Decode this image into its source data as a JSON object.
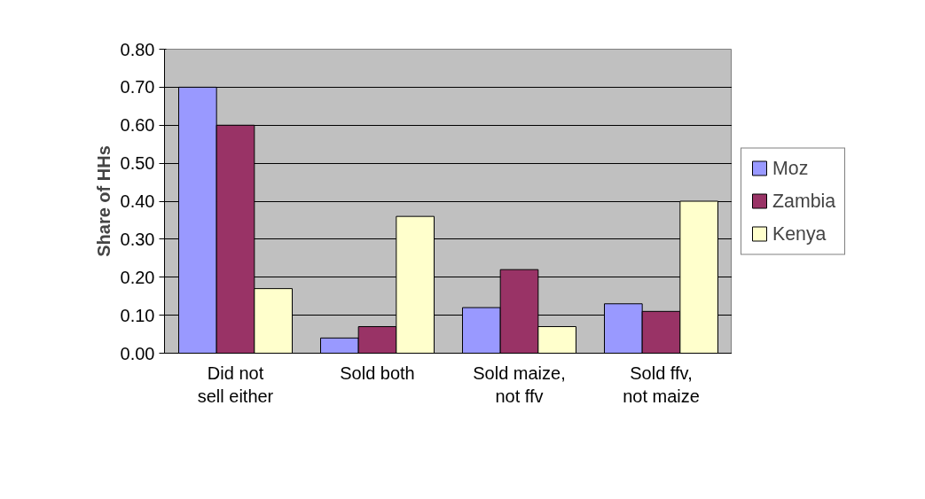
{
  "chart_data": {
    "type": "bar",
    "ylabel": "Share of HHs",
    "categories": [
      "Did not sell either",
      "Sold both",
      "Sold maize, not ffv",
      "Sold ffv, not maize"
    ],
    "series": [
      {
        "name": "Moz",
        "color": "#9999ff",
        "values": [
          0.7,
          0.04,
          0.12,
          0.13
        ]
      },
      {
        "name": "Zambia",
        "color": "#993366",
        "values": [
          0.6,
          0.07,
          0.22,
          0.11
        ]
      },
      {
        "name": "Kenya",
        "color": "#ffffcc",
        "values": [
          0.17,
          0.36,
          0.07,
          0.4
        ]
      }
    ],
    "ylim": [
      0,
      0.8
    ],
    "yticks": [
      {
        "value": 0,
        "label": "0.00"
      },
      {
        "value": 0.1,
        "label": "0.10"
      },
      {
        "value": 0.2,
        "label": "0.20"
      },
      {
        "value": 0.3,
        "label": "0.30"
      },
      {
        "value": 0.4,
        "label": "0.40"
      },
      {
        "value": 0.5,
        "label": "0.50"
      },
      {
        "value": 0.6,
        "label": "0.60"
      },
      {
        "value": 0.7,
        "label": "0.70"
      },
      {
        "value": 0.8,
        "label": "0.80"
      }
    ],
    "grid": "y",
    "legend": "right"
  }
}
